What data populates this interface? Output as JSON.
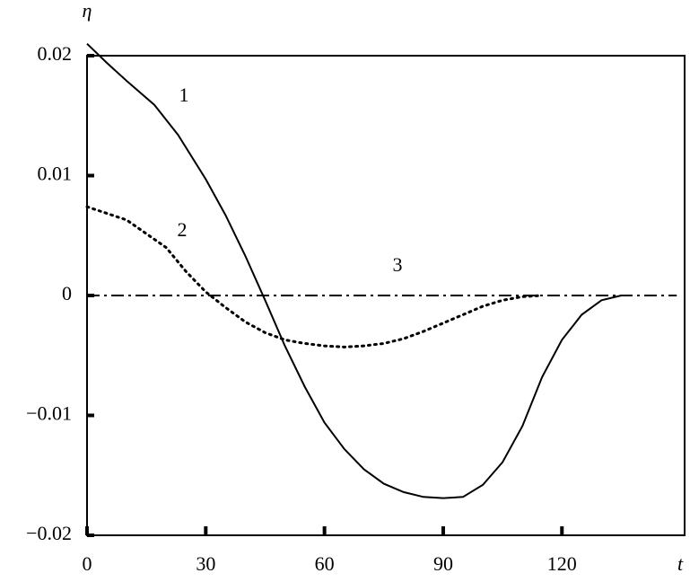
{
  "chart_data": {
    "type": "line",
    "x_label": "t",
    "y_label": "η",
    "xlim": [
      0,
      151
    ],
    "ylim": [
      -0.02,
      0.02
    ],
    "xticks": [
      0,
      30,
      60,
      90,
      120
    ],
    "yticks": [
      {
        "value": -0.02,
        "label": "−0.02"
      },
      {
        "value": -0.01,
        "label": "−0.01"
      },
      0,
      0.01,
      0.02
    ],
    "series": [
      {
        "name": "1",
        "color": "#000000",
        "style": "solid",
        "x": [
          0,
          5,
          10,
          17,
          23,
          30,
          35,
          40,
          45,
          50,
          55,
          60,
          65,
          70,
          75,
          80,
          85,
          90,
          95,
          100,
          105,
          110,
          115,
          120,
          125,
          130,
          135
        ],
        "values": [
          0.021,
          0.0194,
          0.0179,
          0.0159,
          0.0134,
          0.0097,
          0.0067,
          0.0033,
          -0.0004,
          -0.0042,
          -0.0076,
          -0.0106,
          -0.0128,
          -0.0145,
          -0.0157,
          -0.0164,
          -0.0168,
          -0.0169,
          -0.0168,
          -0.0158,
          -0.0139,
          -0.0109,
          -0.0068,
          -0.0037,
          -0.0016,
          -0.0004,
          0
        ]
      },
      {
        "name": "2",
        "color": "#000000",
        "style": "dotted",
        "x": [
          0,
          10,
          20,
          25,
          30,
          35,
          40,
          45,
          50,
          55,
          60,
          65,
          70,
          75,
          80,
          85,
          90,
          95,
          100,
          105,
          110,
          115
        ],
        "values": [
          0.0074,
          0.0063,
          0.004,
          0.002,
          0.0003,
          -0.001,
          -0.0022,
          -0.0031,
          -0.0037,
          -0.004,
          -0.0042,
          -0.0043,
          -0.0042,
          -0.004,
          -0.0036,
          -0.003,
          -0.0023,
          -0.0016,
          -0.0009,
          -0.0004,
          -0.0001,
          0
        ]
      },
      {
        "name": "3",
        "color": "#000000",
        "style": "dashdot",
        "x": [
          0,
          149
        ],
        "values": [
          0,
          0
        ]
      }
    ]
  }
}
